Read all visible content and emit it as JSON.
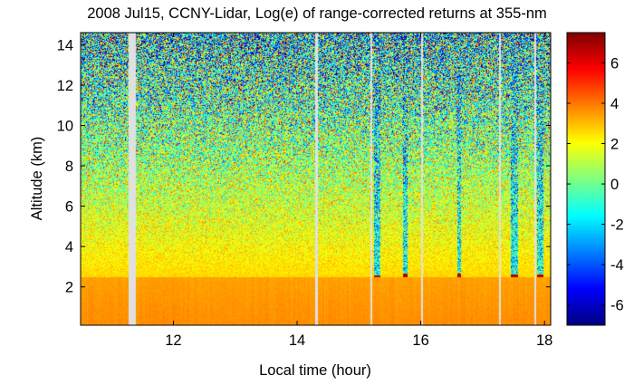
{
  "chart_data": {
    "type": "heatmap",
    "title": "2008 Jul15, CCNY-Lidar, Log(e) of range-corrected returns at 355-nm",
    "xlabel": "Local time (hour)",
    "ylabel": "Altitude (km)",
    "xlim": [
      10.5,
      18.1
    ],
    "ylim": [
      0.1,
      14.6
    ],
    "xticks": [
      12,
      14,
      16,
      18
    ],
    "yticks": [
      2,
      4,
      6,
      8,
      10,
      12,
      14
    ],
    "colorbar": {
      "range": [
        -7,
        7.5
      ],
      "ticks": [
        -6,
        -4,
        -2,
        0,
        2,
        4,
        6
      ],
      "colormap": "jet"
    },
    "boundary_layer_top_km": 2.5,
    "data_gaps_hour": [
      {
        "start": 11.28,
        "end": 11.4
      },
      {
        "start": 14.3,
        "end": 14.34
      },
      {
        "start": 15.18,
        "end": 15.22
      },
      {
        "start": 16.0,
        "end": 16.03
      },
      {
        "start": 17.26,
        "end": 17.29
      },
      {
        "start": 17.84,
        "end": 17.86
      }
    ],
    "cloud_columns": [
      {
        "time": 15.3,
        "width_hours": 0.1,
        "cloud_base_km": 2.45
      },
      {
        "time": 15.75,
        "width_hours": 0.06,
        "cloud_base_km": 2.55
      },
      {
        "time": 16.62,
        "width_hours": 0.06,
        "cloud_base_km": 2.55
      },
      {
        "time": 17.52,
        "width_hours": 0.12,
        "cloud_base_km": 2.5
      },
      {
        "time": 17.93,
        "width_hours": 0.1,
        "cloud_base_km": 2.5
      }
    ],
    "colors": {
      "gap": "#e0e0e0",
      "frame": "#000000"
    }
  }
}
